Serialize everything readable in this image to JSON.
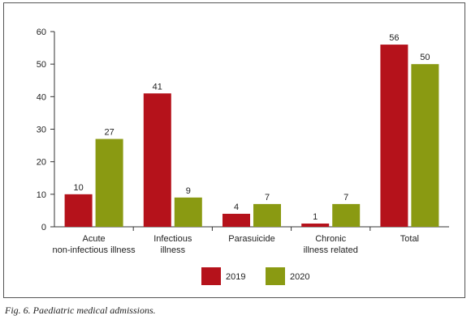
{
  "chart_data": {
    "type": "bar",
    "categories": [
      [
        "Acute",
        "non-infectious illness"
      ],
      [
        "Infectious",
        "illness"
      ],
      [
        "Parasuicide"
      ],
      [
        "Chronic",
        "illness related"
      ],
      [
        "Total"
      ]
    ],
    "series": [
      {
        "name": "2019",
        "color": "#b5121b",
        "values": [
          10,
          41,
          4,
          1,
          56
        ]
      },
      {
        "name": "2020",
        "color": "#8a9a12",
        "values": [
          27,
          9,
          7,
          7,
          50
        ]
      }
    ],
    "ylim": [
      0,
      60
    ],
    "yticks": [
      0,
      10,
      20,
      30,
      40,
      50,
      60
    ],
    "grid": false,
    "legend": "bottom-center"
  },
  "caption": "Fig. 6. Paediatric medical admissions."
}
